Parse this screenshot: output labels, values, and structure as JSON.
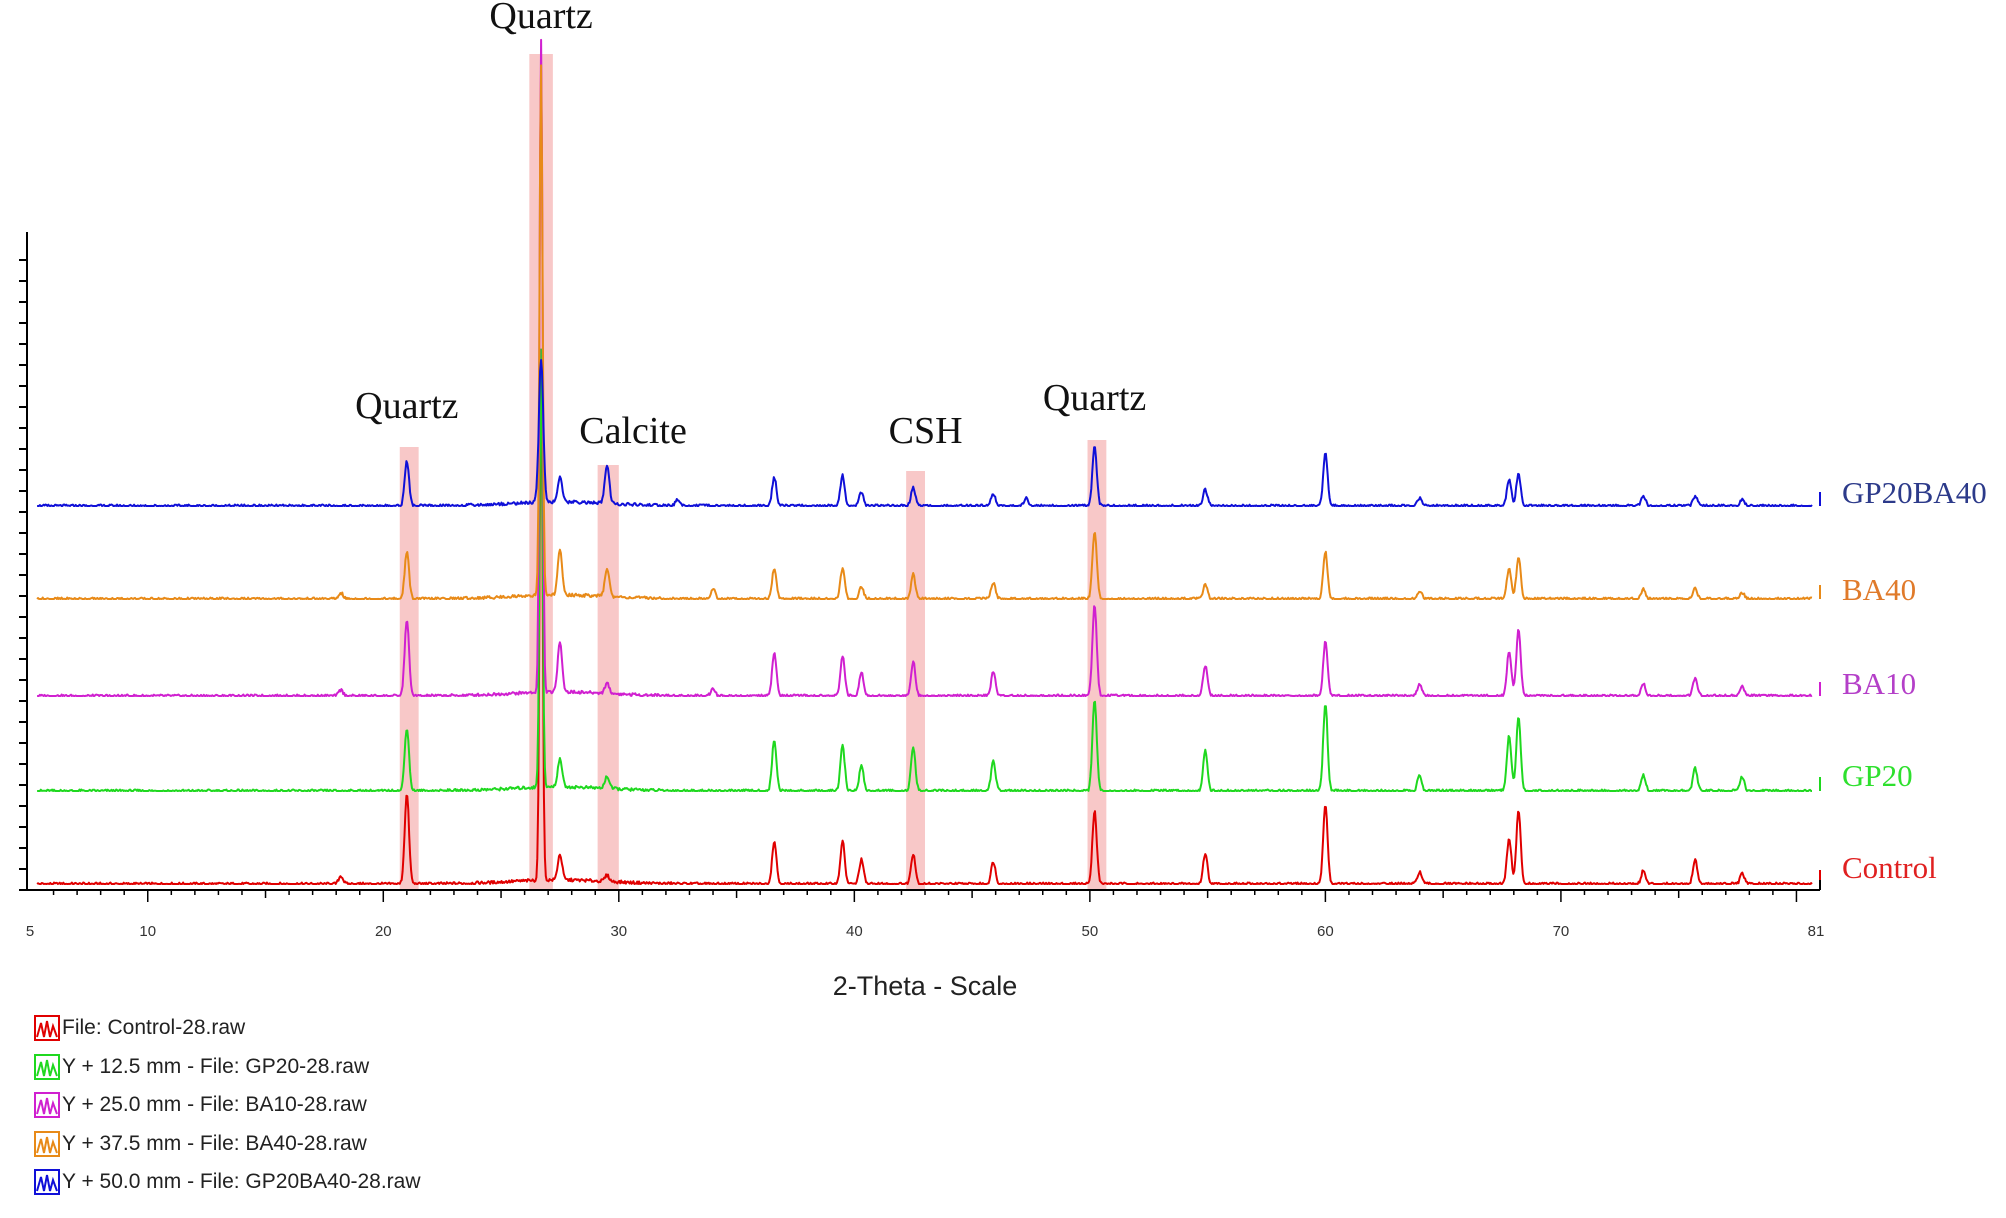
{
  "chart_data": {
    "type": "line",
    "xlabel": "2-Theta - Scale",
    "ylabel": "",
    "xlim": [
      5,
      81
    ],
    "x_ticks": [
      "5",
      "10",
      "20",
      "30",
      "40",
      "50",
      "60",
      "70",
      "81"
    ],
    "grid": false,
    "legend_position": "bottom-left",
    "series": [
      {
        "name": "Control",
        "color": "#e00000",
        "legend": "File: Control-28.raw",
        "peaks": [
          {
            "x": 18.2,
            "y": 8
          },
          {
            "x": 21.0,
            "y": 88
          },
          {
            "x": 26.7,
            "y": 500
          },
          {
            "x": 27.5,
            "y": 25
          },
          {
            "x": 29.5,
            "y": 6
          },
          {
            "x": 36.6,
            "y": 42
          },
          {
            "x": 39.5,
            "y": 42
          },
          {
            "x": 40.3,
            "y": 24
          },
          {
            "x": 42.5,
            "y": 30
          },
          {
            "x": 45.9,
            "y": 22
          },
          {
            "x": 50.2,
            "y": 72
          },
          {
            "x": 54.9,
            "y": 30
          },
          {
            "x": 60.0,
            "y": 78
          },
          {
            "x": 64.0,
            "y": 12
          },
          {
            "x": 67.8,
            "y": 45
          },
          {
            "x": 68.2,
            "y": 72
          },
          {
            "x": 73.5,
            "y": 13
          },
          {
            "x": 75.7,
            "y": 24
          },
          {
            "x": 77.7,
            "y": 10
          }
        ]
      },
      {
        "name": "GP20",
        "color": "#1fd81f",
        "legend": "Y + 12.5 mm - File: GP20-28.raw",
        "peaks": [
          {
            "x": 21.0,
            "y": 62
          },
          {
            "x": 26.7,
            "y": 430
          },
          {
            "x": 27.5,
            "y": 28
          },
          {
            "x": 29.5,
            "y": 12
          },
          {
            "x": 36.6,
            "y": 50
          },
          {
            "x": 39.5,
            "y": 44
          },
          {
            "x": 40.3,
            "y": 25
          },
          {
            "x": 42.5,
            "y": 42
          },
          {
            "x": 45.9,
            "y": 30
          },
          {
            "x": 50.2,
            "y": 90
          },
          {
            "x": 54.9,
            "y": 40
          },
          {
            "x": 60.0,
            "y": 86
          },
          {
            "x": 64.0,
            "y": 16
          },
          {
            "x": 67.8,
            "y": 54
          },
          {
            "x": 68.2,
            "y": 72
          },
          {
            "x": 73.5,
            "y": 16
          },
          {
            "x": 75.7,
            "y": 22
          },
          {
            "x": 77.7,
            "y": 14
          }
        ]
      },
      {
        "name": "BA10",
        "color": "#d020d0",
        "legend": "Y + 25.0 mm - File: BA10-28.raw",
        "peaks": [
          {
            "x": 18.2,
            "y": 6
          },
          {
            "x": 21.0,
            "y": 75
          },
          {
            "x": 26.7,
            "y": 640
          },
          {
            "x": 27.5,
            "y": 50
          },
          {
            "x": 29.5,
            "y": 10
          },
          {
            "x": 34.0,
            "y": 8
          },
          {
            "x": 36.6,
            "y": 42
          },
          {
            "x": 39.5,
            "y": 40
          },
          {
            "x": 40.3,
            "y": 24
          },
          {
            "x": 42.5,
            "y": 34
          },
          {
            "x": 45.9,
            "y": 24
          },
          {
            "x": 50.2,
            "y": 90
          },
          {
            "x": 54.9,
            "y": 30
          },
          {
            "x": 60.0,
            "y": 54
          },
          {
            "x": 64.0,
            "y": 12
          },
          {
            "x": 67.8,
            "y": 44
          },
          {
            "x": 68.2,
            "y": 65
          },
          {
            "x": 73.5,
            "y": 12
          },
          {
            "x": 75.7,
            "y": 18
          },
          {
            "x": 77.7,
            "y": 9
          }
        ]
      },
      {
        "name": "BA40",
        "color": "#e88a18",
        "legend": "Y + 37.5 mm - File: BA40-28.raw",
        "peaks": [
          {
            "x": 18.2,
            "y": 6
          },
          {
            "x": 21.0,
            "y": 46
          },
          {
            "x": 26.7,
            "y": 520
          },
          {
            "x": 27.5,
            "y": 44
          },
          {
            "x": 29.5,
            "y": 28
          },
          {
            "x": 34.0,
            "y": 10
          },
          {
            "x": 36.6,
            "y": 30
          },
          {
            "x": 39.5,
            "y": 30
          },
          {
            "x": 40.3,
            "y": 12
          },
          {
            "x": 42.5,
            "y": 24
          },
          {
            "x": 45.9,
            "y": 16
          },
          {
            "x": 50.2,
            "y": 66
          },
          {
            "x": 54.9,
            "y": 14
          },
          {
            "x": 60.0,
            "y": 46
          },
          {
            "x": 64.0,
            "y": 8
          },
          {
            "x": 67.8,
            "y": 30
          },
          {
            "x": 68.2,
            "y": 42
          },
          {
            "x": 73.5,
            "y": 10
          },
          {
            "x": 75.7,
            "y": 10
          },
          {
            "x": 77.7,
            "y": 6
          }
        ]
      },
      {
        "name": "GP20BA40",
        "color": "#1010d8",
        "legend": "Y + 50.0 mm - File: GP20BA40-28.raw",
        "peaks": [
          {
            "x": 21.0,
            "y": 44
          },
          {
            "x": 26.7,
            "y": 140
          },
          {
            "x": 27.5,
            "y": 24
          },
          {
            "x": 29.5,
            "y": 38
          },
          {
            "x": 32.5,
            "y": 6
          },
          {
            "x": 36.6,
            "y": 28
          },
          {
            "x": 39.5,
            "y": 30
          },
          {
            "x": 40.3,
            "y": 14
          },
          {
            "x": 42.5,
            "y": 18
          },
          {
            "x": 45.9,
            "y": 12
          },
          {
            "x": 47.3,
            "y": 8
          },
          {
            "x": 50.2,
            "y": 58
          },
          {
            "x": 54.9,
            "y": 16
          },
          {
            "x": 60.0,
            "y": 52
          },
          {
            "x": 64.0,
            "y": 8
          },
          {
            "x": 67.8,
            "y": 26
          },
          {
            "x": 68.2,
            "y": 32
          },
          {
            "x": 73.5,
            "y": 10
          },
          {
            "x": 75.7,
            "y": 10
          },
          {
            "x": 77.7,
            "y": 6
          }
        ]
      }
    ],
    "annotations": [
      {
        "text": "Quartz",
        "x": 21.0
      },
      {
        "text": "Quartz",
        "x": 26.7
      },
      {
        "text": "Calcite",
        "x": 29.5
      },
      {
        "text": "CSH",
        "x": 42.6
      },
      {
        "text": "Quartz",
        "x": 50.2
      }
    ],
    "highlight_bands": [
      {
        "x0": 20.7,
        "x1": 21.5
      },
      {
        "x0": 26.2,
        "x1": 27.2
      },
      {
        "x0": 29.1,
        "x1": 30.0
      },
      {
        "x0": 42.2,
        "x1": 43.0
      },
      {
        "x0": 49.9,
        "x1": 50.7
      }
    ]
  }
}
